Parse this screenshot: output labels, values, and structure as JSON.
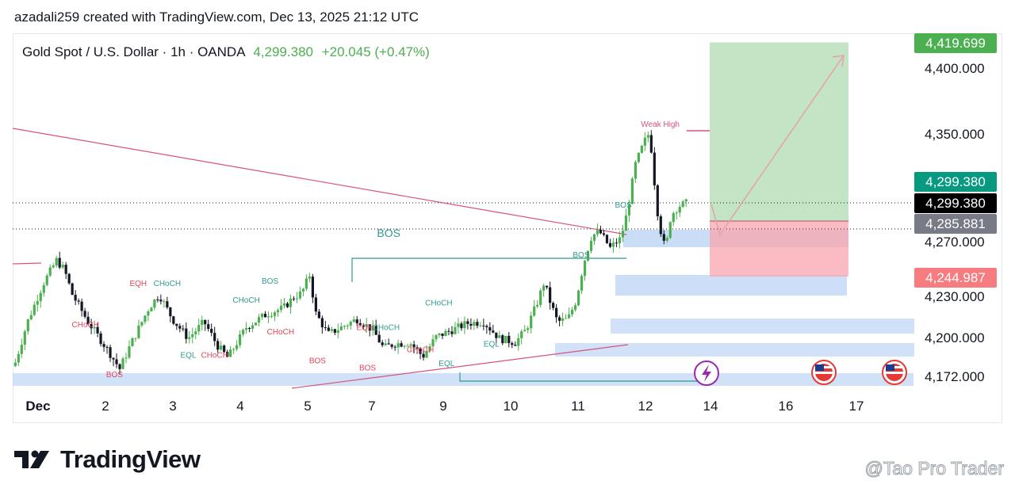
{
  "header": {
    "byline": "azadali259 created with TradingView.com, Dec 13, 2025 21:12 UTC"
  },
  "symbol": {
    "name": "Gold Spot / U.S. Dollar · 1h · OANDA",
    "last": "4,299.380",
    "change": "+20.045 (+0.47%)"
  },
  "badges": {
    "target": "4,419.699",
    "last_price": "4,299.380",
    "cursor_price": "4,299.380",
    "entry": "4,285.881",
    "stop": "4,244.987"
  },
  "colors": {
    "up": "#26a69a",
    "down": "#131722",
    "bull_candle": "#4caf50",
    "target_badge": "#4caf50",
    "entry_badge": "#787b86",
    "stop_badge": "#f77c80",
    "last_badge": "#089981",
    "cursor_badge": "#000000",
    "trend_line": "#d7527d",
    "bos_line": "#2e9b8c",
    "zone": "#bcd4f5"
  },
  "branding": {
    "logo_text": "TradingView",
    "watermark": "@Tao Pro Trader"
  },
  "chart_data": {
    "type": "candlestick",
    "title": "Gold Spot / U.S. Dollar · 1h · OANDA",
    "y_ticks": [
      "4,400.000",
      "4,350.000",
      "4,270.000",
      "4,230.000",
      "4,200.000",
      "4,172.000"
    ],
    "x_ticks": [
      "Dec",
      "2",
      "3",
      "4",
      "5",
      "7",
      "9",
      "10",
      "11",
      "12",
      "14",
      "16",
      "17"
    ],
    "ylim": [
      4165,
      4425
    ],
    "x_range": [
      0,
      16.7
    ],
    "position": {
      "type": "long",
      "entry": 4285.881,
      "stop": 4244.987,
      "target": 4419.699
    },
    "levels": {
      "weak_high": 4352,
      "bos_top": 4272,
      "bos_low_line": 4172
    },
    "price_path": [
      [
        0.0,
        4180
      ],
      [
        0.25,
        4212
      ],
      [
        0.55,
        4240
      ],
      [
        0.8,
        4257
      ],
      [
        0.95,
        4250
      ],
      [
        1.1,
        4232
      ],
      [
        1.4,
        4212
      ],
      [
        1.8,
        4190
      ],
      [
        2.0,
        4178
      ],
      [
        2.2,
        4195
      ],
      [
        2.55,
        4222
      ],
      [
        2.75,
        4232
      ],
      [
        3.0,
        4214
      ],
      [
        3.3,
        4200
      ],
      [
        3.6,
        4212
      ],
      [
        3.85,
        4195
      ],
      [
        4.05,
        4186
      ],
      [
        4.4,
        4208
      ],
      [
        4.8,
        4218
      ],
      [
        5.1,
        4222
      ],
      [
        5.3,
        4230
      ],
      [
        5.45,
        4233
      ],
      [
        5.6,
        4246
      ],
      [
        5.72,
        4218
      ],
      [
        5.95,
        4203
      ],
      [
        6.2,
        4208
      ],
      [
        6.5,
        4214
      ],
      [
        6.8,
        4206
      ],
      [
        7.0,
        4193
      ],
      [
        7.2,
        4196
      ],
      [
        7.5,
        4197
      ],
      [
        7.75,
        4187
      ],
      [
        8.0,
        4201
      ],
      [
        8.3,
        4206
      ],
      [
        8.6,
        4211
      ],
      [
        8.9,
        4212
      ],
      [
        9.2,
        4200
      ],
      [
        9.5,
        4197
      ],
      [
        9.7,
        4206
      ],
      [
        9.9,
        4224
      ],
      [
        10.05,
        4241
      ],
      [
        10.15,
        4228
      ],
      [
        10.3,
        4212
      ],
      [
        10.5,
        4214
      ],
      [
        10.65,
        4227
      ],
      [
        10.8,
        4255
      ],
      [
        10.95,
        4275
      ],
      [
        11.1,
        4278
      ],
      [
        11.3,
        4266
      ],
      [
        11.5,
        4273
      ],
      [
        11.62,
        4292
      ],
      [
        11.78,
        4328
      ],
      [
        11.95,
        4345
      ],
      [
        12.05,
        4352
      ],
      [
        12.12,
        4322
      ],
      [
        12.22,
        4285
      ],
      [
        12.35,
        4264
      ],
      [
        12.45,
        4290
      ],
      [
        12.6,
        4297
      ],
      [
        12.75,
        4299.38
      ]
    ],
    "annotations": [
      {
        "text": "Weak High",
        "x": 12.25,
        "y": 4356,
        "color": "#d7527d"
      },
      {
        "text": "BOS",
        "x": 7.1,
        "y": 4274,
        "color": "#2e9b8c"
      },
      {
        "text": "BOS",
        "x": 11.55,
        "y": 4296,
        "color": "#2e9b8c"
      },
      {
        "text": "BOS",
        "x": 10.75,
        "y": 4259,
        "color": "#2e9b8c"
      },
      {
        "text": "BOS",
        "x": 4.85,
        "y": 4240,
        "color": "#2e9b8c"
      },
      {
        "text": "EQH",
        "x": 2.35,
        "y": 4238,
        "color": "#e0455a"
      },
      {
        "text": "CHoCH",
        "x": 2.9,
        "y": 4238,
        "color": "#2e9b8c"
      },
      {
        "text": "CHoCH",
        "x": 1.35,
        "y": 4208,
        "color": "#e0455a"
      },
      {
        "text": "CHoCH",
        "x": 4.4,
        "y": 4226,
        "color": "#2e9b8c"
      },
      {
        "text": "CHoCH",
        "x": 5.05,
        "y": 4203,
        "color": "#e0455a"
      },
      {
        "text": "EQL",
        "x": 3.3,
        "y": 4186,
        "color": "#2e9b8c"
      },
      {
        "text": "CHoCH",
        "x": 3.8,
        "y": 4186,
        "color": "#e0455a"
      },
      {
        "text": "EQH",
        "x": 6.65,
        "y": 4206,
        "color": "#e0455a"
      },
      {
        "text": "CHoCH",
        "x": 7.05,
        "y": 4206,
        "color": "#2e9b8c"
      },
      {
        "text": "CHoCH",
        "x": 8.05,
        "y": 4224,
        "color": "#2e9b8c"
      },
      {
        "text": "CHoCH",
        "x": 7.7,
        "y": 4190,
        "color": "#e0455a"
      },
      {
        "text": "BOS",
        "x": 5.75,
        "y": 4182,
        "color": "#e0455a"
      },
      {
        "text": "BOS",
        "x": 6.7,
        "y": 4177,
        "color": "#e0455a"
      },
      {
        "text": "BOS",
        "x": 1.9,
        "y": 4172,
        "color": "#e0455a"
      },
      {
        "text": "EQL",
        "x": 8.2,
        "y": 4180,
        "color": "#2e9b8c"
      },
      {
        "text": "EQL",
        "x": 9.05,
        "y": 4194,
        "color": "#2e9b8c"
      }
    ]
  }
}
